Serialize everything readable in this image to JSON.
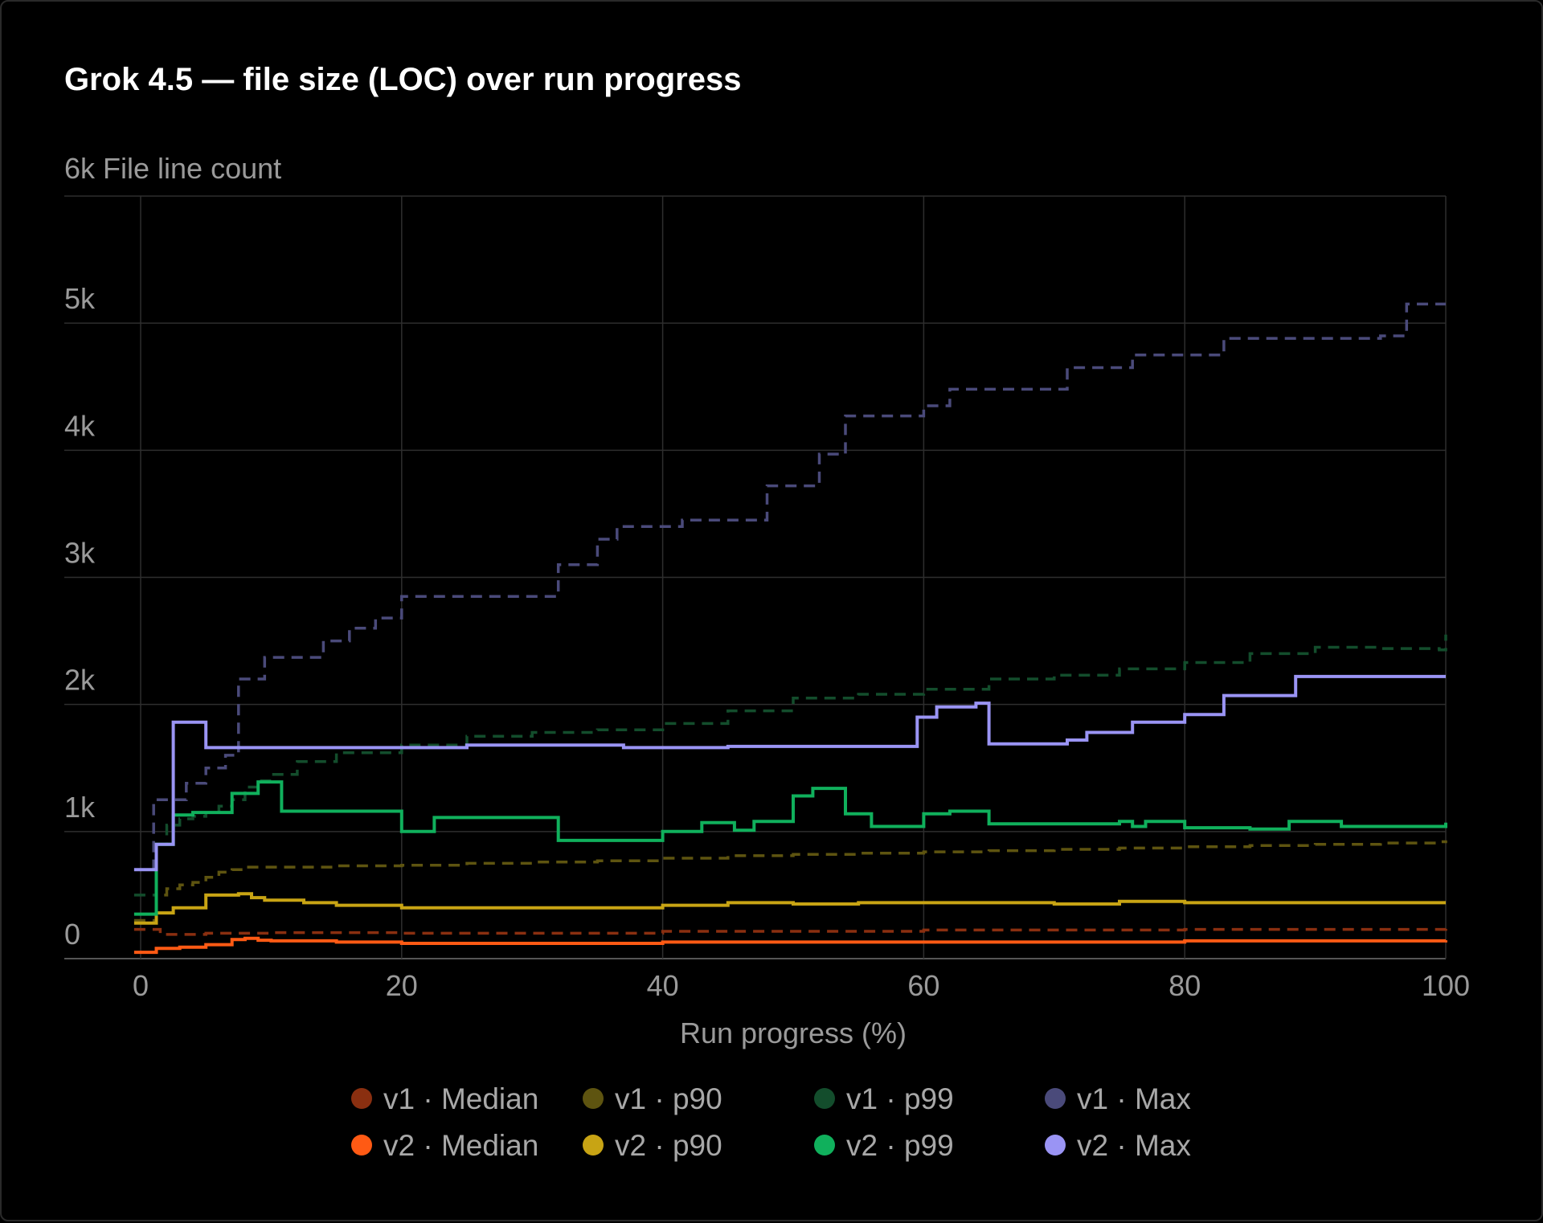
{
  "chart_data": {
    "type": "line",
    "title": "Grok 4.5 — file size (LOC) over run progress",
    "ylabel": "File line count",
    "xlabel": "Run progress (%)",
    "xlim": [
      0,
      100
    ],
    "ylim": [
      0,
      6000
    ],
    "x_ticks": [
      0,
      20,
      40,
      60,
      80,
      100
    ],
    "y_ticks": [
      {
        "value": 0,
        "label": "0"
      },
      {
        "value": 1000,
        "label": "1k"
      },
      {
        "value": 2000,
        "label": "2k"
      },
      {
        "value": 3000,
        "label": "3k"
      },
      {
        "value": 4000,
        "label": "4k"
      },
      {
        "value": 5000,
        "label": "5k"
      },
      {
        "value": 6000,
        "label": "6k"
      }
    ],
    "grid": true,
    "line_shape": "step",
    "legend_position": "bottom",
    "series": [
      {
        "name": "v1 · Median",
        "color": "#8a2f10",
        "dash": true,
        "x": [
          -0.5,
          1.2,
          1.5,
          5,
          10,
          20,
          40,
          60,
          80,
          100
        ],
        "y": [
          230,
          230,
          190,
          200,
          205,
          200,
          215,
          225,
          230,
          235
        ]
      },
      {
        "name": "v2 · Median",
        "color": "#ff5a14",
        "dash": false,
        "x": [
          -0.5,
          1.2,
          3,
          5,
          7,
          8,
          9,
          10,
          15,
          20,
          40,
          60,
          80,
          100
        ],
        "y": [
          50,
          80,
          90,
          110,
          150,
          160,
          145,
          140,
          130,
          120,
          130,
          130,
          140,
          145
        ]
      },
      {
        "name": "v1 · p90",
        "color": "#5e5410",
        "dash": true,
        "x": [
          -0.5,
          1.2,
          2,
          3,
          4,
          5,
          6,
          7,
          8,
          10,
          15,
          20,
          25,
          30,
          35,
          40,
          45,
          50,
          55,
          60,
          65,
          70,
          75,
          80,
          85,
          90,
          95,
          99.5,
          100
        ],
        "y": [
          300,
          500,
          550,
          580,
          600,
          640,
          680,
          700,
          720,
          720,
          730,
          735,
          750,
          760,
          770,
          790,
          810,
          820,
          830,
          840,
          850,
          860,
          870,
          880,
          890,
          900,
          910,
          920,
          930
        ]
      },
      {
        "name": "v2 · p90",
        "color": "#c8a414",
        "dash": false,
        "x": [
          -0.5,
          1.2,
          2.5,
          5,
          7.5,
          8.5,
          9.5,
          12.5,
          15,
          20,
          30,
          40,
          45,
          50,
          55,
          60,
          70,
          75,
          80,
          100
        ],
        "y": [
          280,
          360,
          400,
          500,
          510,
          480,
          460,
          440,
          420,
          400,
          400,
          420,
          440,
          430,
          440,
          440,
          430,
          450,
          440,
          440
        ]
      },
      {
        "name": "v1 · p99",
        "color": "#134d2c",
        "dash": true,
        "x": [
          -0.5,
          1.2,
          2,
          3,
          4,
          5,
          6,
          7,
          8,
          9,
          10,
          12,
          15,
          20,
          25,
          30,
          35,
          40,
          45,
          50,
          55,
          60,
          65,
          70,
          75,
          80,
          85,
          90,
          95,
          99.5,
          100
        ],
        "y": [
          500,
          900,
          1050,
          1100,
          1120,
          1150,
          1200,
          1250,
          1350,
          1400,
          1450,
          1550,
          1620,
          1680,
          1750,
          1780,
          1800,
          1850,
          1950,
          2050,
          2080,
          2120,
          2200,
          2230,
          2280,
          2330,
          2400,
          2450,
          2440,
          2430,
          2550
        ]
      },
      {
        "name": "v2 · p99",
        "color": "#10b05c",
        "dash": false,
        "x": [
          -0.5,
          1.2,
          2.5,
          4,
          7,
          9,
          10.8,
          14,
          20,
          22.5,
          32,
          40,
          43,
          45.5,
          47,
          50,
          51.5,
          54,
          56,
          60,
          62,
          65,
          70,
          75,
          76,
          77,
          80,
          85,
          88,
          92,
          95,
          100
        ],
        "y": [
          350,
          900,
          1130,
          1150,
          1300,
          1390,
          1160,
          1160,
          1000,
          1110,
          930,
          1000,
          1070,
          1010,
          1080,
          1280,
          1340,
          1140,
          1040,
          1140,
          1160,
          1060,
          1060,
          1080,
          1040,
          1080,
          1030,
          1020,
          1080,
          1040,
          1040,
          1070
        ]
      },
      {
        "name": "v1 · Max",
        "color": "#4a4a7a",
        "dash": true,
        "x": [
          -0.5,
          1,
          2,
          3.5,
          5,
          6.5,
          7.5,
          9.5,
          14,
          16,
          18,
          20,
          32,
          35,
          36.5,
          41.5,
          48,
          52,
          54,
          60,
          62,
          64,
          71,
          76,
          77,
          83,
          95,
          97,
          100
        ],
        "y": [
          700,
          1250,
          1250,
          1380,
          1500,
          1600,
          2200,
          2370,
          2500,
          2600,
          2680,
          2850,
          3100,
          3300,
          3400,
          3450,
          3720,
          3970,
          4270,
          4350,
          4480,
          4480,
          4650,
          4750,
          4750,
          4880,
          4900,
          5150,
          5150
        ]
      },
      {
        "name": "v2 · Max",
        "color": "#9a94f4",
        "dash": false,
        "x": [
          -0.5,
          1.2,
          2.5,
          5,
          15,
          25,
          35,
          37,
          45,
          55,
          59.5,
          61,
          64,
          65,
          71,
          72.5,
          76,
          80,
          83,
          88.5,
          100
        ],
        "y": [
          700,
          900,
          1860,
          1660,
          1660,
          1680,
          1680,
          1660,
          1670,
          1670,
          1900,
          1980,
          2010,
          1690,
          1720,
          1780,
          1860,
          1920,
          2070,
          2220,
          2220
        ]
      }
    ]
  }
}
